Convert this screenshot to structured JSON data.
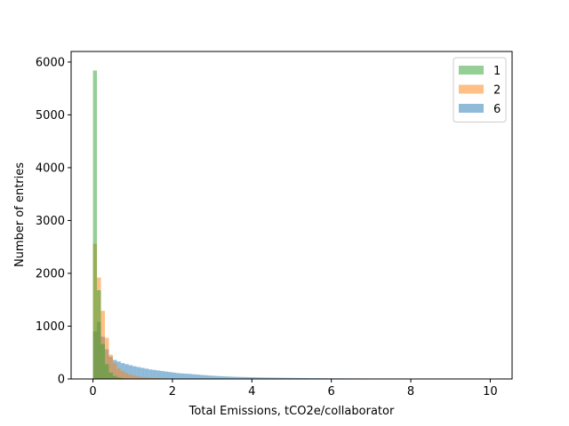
{
  "chart_data": {
    "type": "histogram",
    "xlabel": "Total Emissions, tCO2e/collaborator",
    "ylabel": "Number of entries",
    "xlim": [
      -0.55,
      10.55
    ],
    "ylim": [
      0,
      6200
    ],
    "x_ticks": [
      0,
      2,
      4,
      6,
      8,
      10
    ],
    "y_ticks": [
      0,
      1000,
      2000,
      3000,
      4000,
      5000,
      6000
    ],
    "bin_width": 0.1,
    "bin_start": 0,
    "legend_location": "upper right",
    "series": [
      {
        "name": "6",
        "color": "#1f77b4",
        "opacity": 0.5,
        "counts": [
          900,
          1080,
          800,
          560,
          420,
          360,
          330,
          300,
          280,
          260,
          240,
          225,
          210,
          195,
          180,
          170,
          160,
          150,
          140,
          130,
          120,
          110,
          105,
          100,
          95,
          88,
          82,
          76,
          70,
          65,
          60,
          56,
          52,
          48,
          45,
          42,
          40,
          38,
          36,
          34,
          32,
          30,
          28,
          27,
          26,
          25,
          24,
          23,
          22,
          21,
          20,
          19,
          18,
          17,
          16,
          15,
          15,
          14,
          14,
          13,
          12,
          12,
          11,
          11,
          10,
          10,
          10,
          9,
          9,
          9,
          8,
          8,
          8,
          7,
          7,
          7,
          6,
          6,
          6,
          6,
          5,
          5,
          5,
          5,
          4,
          4,
          4,
          4,
          4,
          3,
          3,
          3,
          3,
          3,
          2,
          2,
          2,
          2,
          2,
          2
        ]
      },
      {
        "name": "2",
        "color": "#ff7f0e",
        "opacity": 0.5,
        "counts": [
          2560,
          1920,
          1290,
          780,
          460,
          300,
          200,
          150,
          110,
          80,
          60,
          45,
          35,
          28,
          22,
          18,
          14,
          11,
          9,
          7,
          6,
          5,
          4,
          3,
          3,
          2,
          2,
          2,
          1,
          1,
          1,
          1,
          1,
          1,
          1,
          0,
          0,
          0,
          0,
          0,
          0,
          0,
          0,
          0,
          0,
          0,
          0,
          0,
          0,
          0,
          0,
          0,
          0,
          0,
          0,
          0,
          0,
          0,
          0,
          0,
          0,
          0,
          0,
          0,
          0,
          0,
          0,
          0,
          0,
          0,
          0,
          0,
          0,
          0,
          0,
          0,
          0,
          0,
          0,
          0,
          0,
          0,
          0,
          0,
          0,
          0,
          0,
          0,
          0,
          0,
          0,
          0,
          0,
          0,
          0,
          0,
          0,
          0,
          0,
          0
        ]
      },
      {
        "name": "1",
        "color": "#2ca02c",
        "opacity": 0.5,
        "counts": [
          5840,
          1680,
          660,
          280,
          120,
          60,
          30,
          15,
          8,
          4,
          2,
          1,
          1,
          0,
          0,
          0,
          0,
          0,
          0,
          0,
          0,
          0,
          0,
          0,
          0,
          0,
          0,
          0,
          0,
          0,
          0,
          0,
          0,
          0,
          0,
          0,
          0,
          0,
          0,
          0,
          0,
          0,
          0,
          0,
          0,
          0,
          0,
          0,
          0,
          0,
          0,
          0,
          0,
          0,
          0,
          0,
          0,
          0,
          0,
          0,
          0,
          0,
          0,
          0,
          0,
          0,
          0,
          0,
          0,
          0,
          0,
          0,
          0,
          0,
          0,
          0,
          0,
          0,
          0,
          0,
          0,
          0,
          0,
          0,
          0,
          0,
          0,
          0,
          0,
          0,
          0,
          0,
          0,
          0,
          0,
          0,
          0,
          0,
          0,
          0
        ]
      }
    ],
    "legend": [
      {
        "label": "1",
        "color": "#2ca02c"
      },
      {
        "label": "2",
        "color": "#ff7f0e"
      },
      {
        "label": "6",
        "color": "#1f77b4"
      }
    ]
  }
}
